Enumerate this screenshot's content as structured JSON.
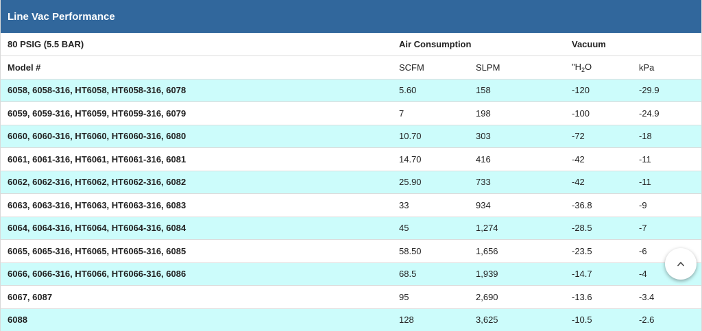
{
  "title": "Line Vac Performance",
  "header": {
    "condition": "80 PSIG (5.5 BAR)",
    "air_consumption": "Air Consumption",
    "vacuum": "Vacuum"
  },
  "subheader": {
    "model": "Model #",
    "scfm": "SCFM",
    "slpm": "SLPM",
    "h2o_prefix": "\"H",
    "h2o_sub": "2",
    "h2o_suffix": "O",
    "kpa": "kPa"
  },
  "rows": [
    {
      "model": "6058, 6058-316, HT6058, HT6058-316, 6078",
      "scfm": "5.60",
      "slpm": "158",
      "h2o": "-120",
      "kpa": "-29.9"
    },
    {
      "model": "6059, 6059-316, HT6059, HT6059-316, 6079",
      "scfm": "7",
      "slpm": "198",
      "h2o": "-100",
      "kpa": "-24.9"
    },
    {
      "model": "6060, 6060-316, HT6060, HT6060-316, 6080",
      "scfm": "10.70",
      "slpm": "303",
      "h2o": "-72",
      "kpa": "-18"
    },
    {
      "model": "6061, 6061-316, HT6061, HT6061-316, 6081",
      "scfm": "14.70",
      "slpm": "416",
      "h2o": "-42",
      "kpa": "-11"
    },
    {
      "model": "6062, 6062-316, HT6062, HT6062-316, 6082",
      "scfm": "25.90",
      "slpm": "733",
      "h2o": "-42",
      "kpa": "-11"
    },
    {
      "model": "6063, 6063-316, HT6063, HT6063-316, 6083",
      "scfm": "33",
      "slpm": "934",
      "h2o": "-36.8",
      "kpa": "-9"
    },
    {
      "model": "6064, 6064-316, HT6064, HT6064-316, 6084",
      "scfm": "45",
      "slpm": "1,274",
      "h2o": "-28.5",
      "kpa": "-7"
    },
    {
      "model": "6065, 6065-316, HT6065, HT6065-316, 6085",
      "scfm": "58.50",
      "slpm": "1,656",
      "h2o": "-23.5",
      "kpa": "-6"
    },
    {
      "model": "6066, 6066-316, HT6066, HT6066-316, 6086",
      "scfm": "68.5",
      "slpm": "1,939",
      "h2o": "-14.7",
      "kpa": "-4"
    },
    {
      "model": "6067, 6087",
      "scfm": "95",
      "slpm": "2,690",
      "h2o": "-13.6",
      "kpa": "-3.4"
    },
    {
      "model": "6088",
      "scfm": "128",
      "slpm": "3,625",
      "h2o": "-10.5",
      "kpa": "-2.6"
    }
  ],
  "colors": {
    "title_bg": "#31679c",
    "row_alt_bg": "#ccfcfb"
  },
  "scroll_top_icon": "chevron-up-icon"
}
